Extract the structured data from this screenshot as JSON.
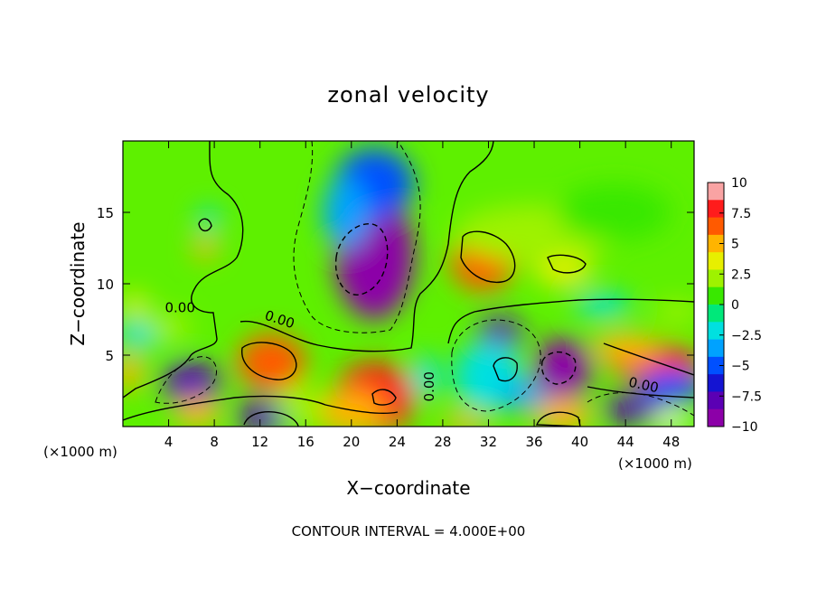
{
  "chart_data": {
    "type": "heatmap",
    "title": "zonal velocity",
    "xlabel": "X−coordinate",
    "ylabel": "Z−coordinate",
    "x_unit_left": "(×1000 m)",
    "x_unit_right": "(×1000 m)",
    "footer": "CONTOUR INTERVAL = 4.000E+00",
    "xlim": [
      0,
      50
    ],
    "ylim": [
      0,
      20
    ],
    "xticks": [
      4,
      8,
      12,
      16,
      20,
      24,
      28,
      32,
      36,
      40,
      44,
      48
    ],
    "yticks": [
      5,
      10,
      15
    ],
    "colorbar": {
      "ticks": [
        10,
        7.5,
        5,
        2.5,
        0,
        -2.5,
        -5,
        -7.5,
        -10
      ],
      "tick_labels": [
        "10",
        "7.5",
        "5",
        "2.5",
        "0",
        "−2.5",
        "−5",
        "−7.5",
        "−10"
      ],
      "colors": [
        "#f9a3a3",
        "#ff1c1c",
        "#ff5a00",
        "#ffb400",
        "#e7ef00",
        "#9ef200",
        "#39e800",
        "#00e87a",
        "#00e0e0",
        "#00a2ff",
        "#0050ff",
        "#1414d2",
        "#5b00b4",
        "#8c00a8"
      ]
    },
    "contour_labels": [
      {
        "text": "0.00",
        "x": 5.0,
        "z": 8.0,
        "rotate": 0
      },
      {
        "text": "0.00",
        "x": 13.6,
        "z": 7.2,
        "rotate": 18
      },
      {
        "text": "0.00",
        "x": 27.2,
        "z": 2.8,
        "rotate": -90
      },
      {
        "text": "0.00",
        "x": 45.5,
        "z": 2.6,
        "rotate": 12
      }
    ],
    "features": [
      {
        "x": 22.0,
        "z": 12.0,
        "value": -10,
        "rx": 3.5,
        "rz": 4.5
      },
      {
        "x": 22.0,
        "z": 17.0,
        "value": -5,
        "rx": 3.5,
        "rz": 2.5
      },
      {
        "x": 19.5,
        "z": 15.0,
        "value": -4,
        "rx": 2.0,
        "rz": 2.5
      },
      {
        "x": 31.5,
        "z": 11.5,
        "value": 7,
        "rx": 2.8,
        "rz": 2.0
      },
      {
        "x": 38.5,
        "z": 11.0,
        "value": 4,
        "rx": 2.5,
        "rz": 1.2
      },
      {
        "x": 36.0,
        "z": 13.5,
        "value": 2.5,
        "rx": 7.0,
        "rz": 2.0
      },
      {
        "x": 43.0,
        "z": 15.0,
        "value": 1.5,
        "rx": 5.0,
        "rz": 2.0
      },
      {
        "x": 13.0,
        "z": 4.5,
        "value": 7.5,
        "rx": 3.0,
        "rz": 2.0
      },
      {
        "x": 22.0,
        "z": 2.0,
        "value": 9,
        "rx": 3.5,
        "rz": 2.5
      },
      {
        "x": 20.0,
        "z": 1.0,
        "value": 6,
        "rx": 3.0,
        "rz": 1.5
      },
      {
        "x": 6.0,
        "z": 3.0,
        "value": -8,
        "rx": 2.5,
        "rz": 1.6
      },
      {
        "x": 6.5,
        "z": 1.0,
        "value": 6,
        "rx": 2.0,
        "rz": 1.0
      },
      {
        "x": 12.5,
        "z": 0.7,
        "value": -8,
        "rx": 2.5,
        "rz": 1.2
      },
      {
        "x": 7.2,
        "z": 12.5,
        "value": 6,
        "rx": 1.0,
        "rz": 0.8
      },
      {
        "x": 7.5,
        "z": 14.5,
        "value": -2,
        "rx": 1.0,
        "rz": 0.8
      },
      {
        "x": 0.5,
        "z": 3.8,
        "value": 6,
        "rx": 1.2,
        "rz": 1.3
      },
      {
        "x": 1.0,
        "z": 8.5,
        "value": 4,
        "rx": 1.2,
        "rz": 0.8
      },
      {
        "x": 1.5,
        "z": 6.5,
        "value": -3,
        "rx": 2.0,
        "rz": 1.0
      },
      {
        "x": 4.0,
        "z": 7.0,
        "value": 3,
        "rx": 2.0,
        "rz": 1.0
      },
      {
        "x": 38.5,
        "z": 4.0,
        "value": -10,
        "rx": 2.5,
        "rz": 2.2
      },
      {
        "x": 33.0,
        "z": 6.5,
        "value": -8,
        "rx": 2.0,
        "rz": 1.2
      },
      {
        "x": 32.0,
        "z": 3.5,
        "value": -3,
        "rx": 3.0,
        "rz": 2.5
      },
      {
        "x": 46.5,
        "z": 4.5,
        "value": 8,
        "rx": 4.0,
        "rz": 1.3
      },
      {
        "x": 44.0,
        "z": 5.5,
        "value": 5,
        "rx": 3.0,
        "rz": 1.0
      },
      {
        "x": 48.0,
        "z": 2.8,
        "value": -6,
        "rx": 3.0,
        "rz": 1.2
      },
      {
        "x": 37.5,
        "z": 0.5,
        "value": 11,
        "rx": 1.3,
        "rz": 0.7
      },
      {
        "x": 38.5,
        "z": 0.8,
        "value": 6,
        "rx": 2.5,
        "rz": 1.2
      },
      {
        "x": 48.0,
        "z": 0.4,
        "value": 11,
        "rx": 1.6,
        "rz": 0.6
      },
      {
        "x": 44.5,
        "z": 1.2,
        "value": -9,
        "rx": 2.5,
        "rz": 1.0
      },
      {
        "x": 30.0,
        "z": 0.3,
        "value": 5,
        "rx": 2.0,
        "rz": 0.6
      },
      {
        "x": 26.5,
        "z": 3.5,
        "value": -3,
        "rx": 1.2,
        "rz": 1.5
      },
      {
        "x": 15.5,
        "z": 1.5,
        "value": 3,
        "rx": 2.0,
        "rz": 1.5
      },
      {
        "x": 42.0,
        "z": 8.5,
        "value": -3,
        "rx": 2.5,
        "rz": 0.8
      },
      {
        "x": 48.5,
        "z": 8.0,
        "value": 3,
        "rx": 2.0,
        "rz": 0.8
      },
      {
        "x": 35.0,
        "z": 2.2,
        "value": -4,
        "rx": 2.0,
        "rz": 1.0
      }
    ]
  }
}
